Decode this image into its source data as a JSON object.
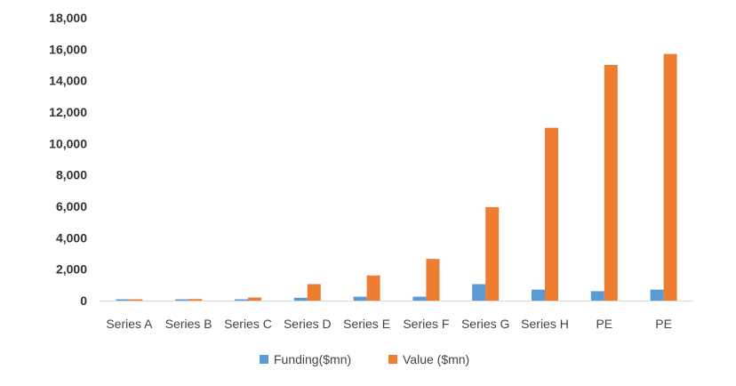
{
  "chart_data": {
    "type": "bar",
    "categories": [
      "Series A",
      "Series B",
      "Series C",
      "Series D",
      "Series E",
      "Series F",
      "Series G",
      "Series H",
      "PE",
      "PE"
    ],
    "series": [
      {
        "name": "Funding($mn)",
        "color": "#5b9bd5",
        "values": [
          20,
          30,
          60,
          180,
          250,
          250,
          1050,
          700,
          600,
          700
        ]
      },
      {
        "name": "Value ($mn)",
        "color": "#ed7d31",
        "values": [
          80,
          100,
          200,
          1050,
          1600,
          2650,
          5950,
          11000,
          15000,
          15700
        ]
      }
    ],
    "ylim": [
      0,
      18000
    ],
    "yticks": [
      "0",
      "2,000",
      "4,000",
      "6,000",
      "8,000",
      "10,000",
      "12,000",
      "14,000",
      "16,000",
      "18,000"
    ],
    "grid": false,
    "legend_position": "bottom"
  }
}
